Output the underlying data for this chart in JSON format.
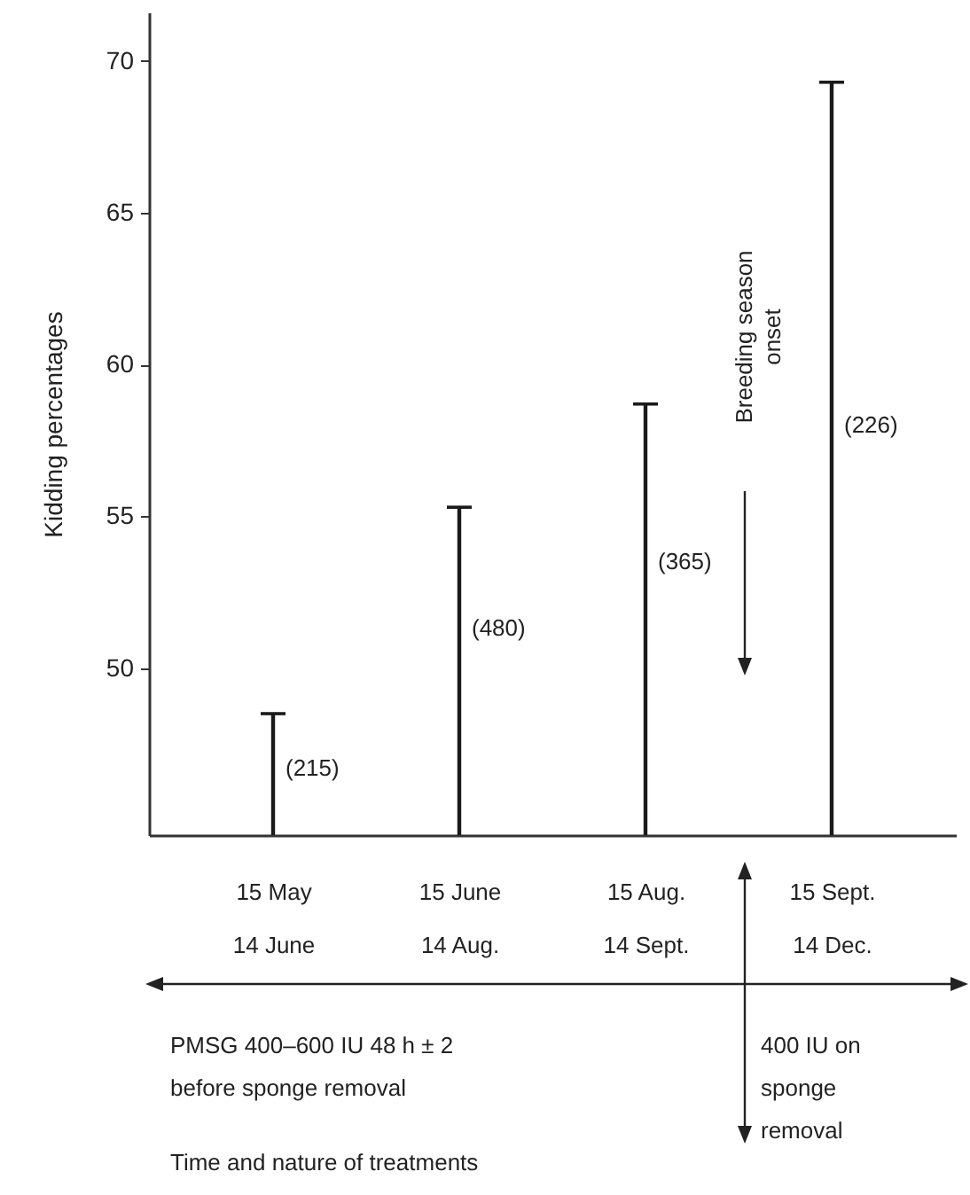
{
  "chart_data": {
    "type": "bar",
    "ylabel": "Kidding percentages",
    "categories": [
      "15 May\n14 June",
      "15 June\n14 Aug.",
      "15 Aug.\n14 Sept.",
      "15 Sept.\n14 Dec."
    ],
    "values": [
      48.5,
      55.3,
      58.7,
      69.3
    ],
    "color": "#1a1a1a",
    "ylim": [
      44.5,
      71.6
    ],
    "yticks": [
      50,
      55,
      60,
      65,
      70
    ],
    "annotations": [
      {
        "text": "(215)",
        "x": "15 May\n14 June",
        "y": 46.7
      },
      {
        "text": "(480)",
        "x": "15 June\n14 Aug.",
        "y": 51.3
      },
      {
        "text": "(365)",
        "x": "15 Aug.\n14 Sept.",
        "y": 53.5
      },
      {
        "text": "(226)",
        "x": "15 Sept.\n14 Dec.",
        "y": 58.0
      },
      "Breeding season\nonset",
      "PMSG 400–600 IU 48 h ± 2\nbefore sponge removal",
      "400 IU on\nsponge\nremoval",
      "Time and nature of treatments"
    ]
  }
}
